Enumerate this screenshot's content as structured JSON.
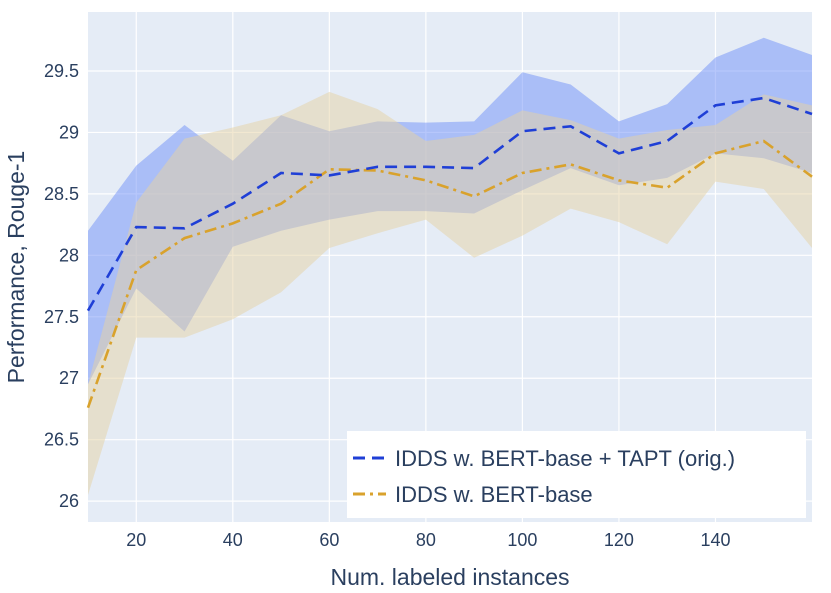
{
  "chart_data": {
    "type": "line",
    "title": "",
    "xlabel": "Num. labeled instances",
    "ylabel": "Performance, Rouge-1",
    "xlim": [
      10,
      160
    ],
    "ylim": [
      25.83,
      29.98
    ],
    "x_ticks": [
      20,
      40,
      60,
      80,
      100,
      120,
      140
    ],
    "x_tick_labels": [
      "20",
      "40",
      "60",
      "80",
      "100",
      "120",
      "140"
    ],
    "y_ticks": [
      26,
      26.5,
      27,
      27.5,
      28,
      28.5,
      29,
      29.5
    ],
    "y_tick_labels": [
      "26",
      "26.5",
      "27",
      "27.5",
      "28",
      "28.5",
      "29",
      "29.5"
    ],
    "grid": true,
    "legend_position": "bottom-right",
    "x": [
      10,
      20,
      30,
      40,
      50,
      60,
      70,
      80,
      90,
      100,
      110,
      120,
      130,
      140,
      150,
      160
    ],
    "series": [
      {
        "name": "IDDS w. BERT-base + TAPT (orig.)",
        "color": "#1f3fd6",
        "band_color": "#6f8ff7",
        "dash": "dash",
        "values": [
          27.55,
          28.23,
          28.22,
          28.42,
          28.67,
          28.65,
          28.72,
          28.72,
          28.71,
          29.01,
          29.05,
          28.83,
          28.93,
          29.22,
          29.28,
          29.15
        ],
        "upper": [
          28.2,
          28.73,
          29.06,
          28.77,
          29.14,
          29.01,
          29.09,
          29.08,
          29.09,
          29.49,
          29.39,
          29.09,
          29.23,
          29.61,
          29.77,
          29.63
        ],
        "lower": [
          26.95,
          27.73,
          27.38,
          28.07,
          28.2,
          28.29,
          28.36,
          28.36,
          28.34,
          28.53,
          28.71,
          28.57,
          28.63,
          28.83,
          28.79,
          28.67
        ]
      },
      {
        "name": "IDDS w. BERT-base",
        "color": "#d9a22c",
        "band_color": "#e6d1a3",
        "dash": "dashdot",
        "values": [
          26.76,
          27.88,
          28.14,
          28.26,
          28.42,
          28.7,
          28.69,
          28.61,
          28.48,
          28.67,
          28.74,
          28.61,
          28.55,
          28.83,
          28.93,
          28.64
        ],
        "upper": [
          26.95,
          28.43,
          28.95,
          29.04,
          29.14,
          29.33,
          29.19,
          28.93,
          28.98,
          29.18,
          29.1,
          28.95,
          29.02,
          29.06,
          29.31,
          29.22
        ],
        "lower": [
          26.05,
          27.33,
          27.33,
          27.48,
          27.7,
          28.06,
          28.18,
          28.29,
          27.98,
          28.16,
          28.38,
          28.27,
          28.09,
          28.6,
          28.54,
          28.06
        ]
      }
    ]
  }
}
